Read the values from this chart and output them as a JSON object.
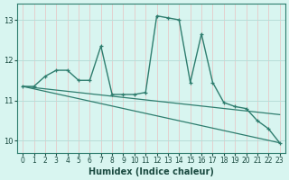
{
  "xlabel": "Humidex (Indice chaleur)",
  "bg_color": "#d8f5f0",
  "grid_color": "#b8ddd8",
  "line_color": "#2e7d6e",
  "xlim": [
    -0.5,
    23.5
  ],
  "ylim": [
    9.7,
    13.4
  ],
  "yticks": [
    10,
    11,
    12,
    13
  ],
  "xticks": [
    0,
    1,
    2,
    3,
    4,
    5,
    6,
    7,
    8,
    9,
    10,
    11,
    12,
    13,
    14,
    15,
    16,
    17,
    18,
    19,
    20,
    21,
    22,
    23
  ],
  "series1_x": [
    0,
    1,
    2,
    3,
    4,
    5,
    6,
    7,
    8,
    9,
    10,
    11,
    12,
    13,
    14,
    15,
    16,
    17,
    18,
    19,
    20,
    21,
    22,
    23
  ],
  "series1_y": [
    11.35,
    11.35,
    11.6,
    11.75,
    11.75,
    11.5,
    11.5,
    12.35,
    11.15,
    11.15,
    11.15,
    11.2,
    13.1,
    13.05,
    13.0,
    11.45,
    12.65,
    11.45,
    10.95,
    10.85,
    10.8,
    10.5,
    10.3,
    9.95
  ],
  "series2_x": [
    0,
    23
  ],
  "series2_y": [
    11.35,
    9.95
  ],
  "series3_x": [
    0,
    23
  ],
  "series3_y": [
    11.35,
    10.65
  ]
}
